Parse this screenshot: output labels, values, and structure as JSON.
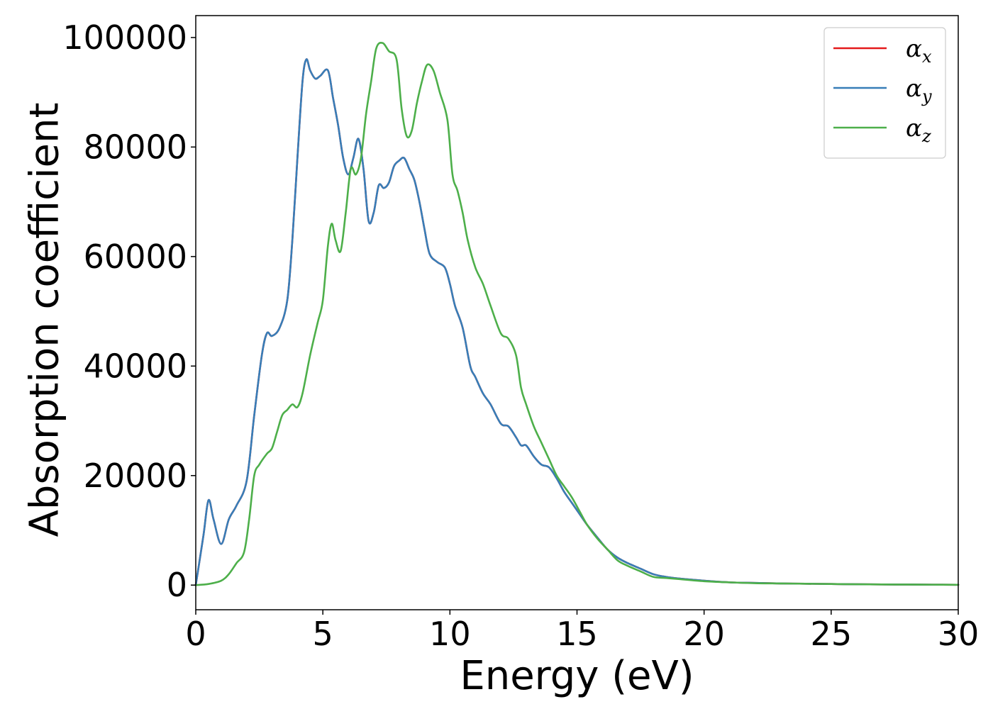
{
  "chart_data": {
    "type": "line",
    "title": "",
    "xlabel": "Energy (eV)",
    "ylabel": "Absorption coefficient",
    "xlim": [
      0,
      30
    ],
    "ylim": [
      -4500,
      104000
    ],
    "xticks": [
      0,
      5,
      10,
      15,
      20,
      25,
      30
    ],
    "yticks": [
      0,
      20000,
      40000,
      60000,
      80000,
      100000
    ],
    "grid": false,
    "legend_position": "top-right",
    "series": [
      {
        "name": "α_x",
        "legend_symbol": "α",
        "legend_subscript": "x",
        "color": "#e41a1c",
        "x": [
          0,
          0.3,
          0.5,
          0.7,
          1.0,
          1.3,
          1.6,
          2.0,
          2.3,
          2.6,
          2.8,
          3.0,
          3.3,
          3.6,
          3.8,
          4.0,
          4.2,
          4.35,
          4.5,
          4.7,
          4.9,
          5.2,
          5.4,
          5.6,
          5.8,
          6.0,
          6.2,
          6.4,
          6.6,
          6.8,
          7.0,
          7.2,
          7.4,
          7.6,
          7.8,
          8.0,
          8.2,
          8.4,
          8.6,
          8.8,
          9.0,
          9.2,
          9.5,
          9.8,
          10.0,
          10.2,
          10.5,
          10.8,
          11.0,
          11.3,
          11.6,
          12.0,
          12.3,
          12.6,
          12.8,
          13.0,
          13.3,
          13.6,
          13.9,
          14.2,
          14.5,
          14.8,
          15.1,
          15.4,
          15.8,
          16.2,
          16.6,
          17.0,
          17.5,
          18.0,
          18.5,
          19.0,
          20.0,
          21.0,
          22.0,
          23.0,
          24.0,
          25.0,
          26.0,
          27.0,
          28.0,
          29.0,
          30.0
        ],
        "values": [
          0,
          9000,
          15500,
          12000,
          7500,
          12000,
          14500,
          19000,
          31000,
          42000,
          46000,
          45500,
          47000,
          52000,
          63000,
          78000,
          92000,
          96000,
          94000,
          92500,
          93000,
          94000,
          89000,
          84000,
          78000,
          75000,
          78000,
          81500,
          76000,
          66500,
          68000,
          73000,
          72500,
          73500,
          76500,
          77500,
          78000,
          76000,
          74000,
          70000,
          65000,
          60500,
          59000,
          58000,
          55000,
          51000,
          47000,
          40000,
          38000,
          35000,
          33000,
          29500,
          29000,
          27000,
          25500,
          25500,
          23500,
          22000,
          21500,
          19500,
          17000,
          15000,
          13000,
          11000,
          8700,
          6500,
          5000,
          4000,
          3000,
          2000,
          1500,
          1200,
          800,
          500,
          400,
          300,
          250,
          200,
          150,
          120,
          100,
          80,
          60
        ]
      },
      {
        "name": "α_y",
        "legend_symbol": "α",
        "legend_subscript": "y",
        "color": "#377eb8",
        "x": [
          0,
          0.3,
          0.5,
          0.7,
          1.0,
          1.3,
          1.6,
          2.0,
          2.3,
          2.6,
          2.8,
          3.0,
          3.3,
          3.6,
          3.8,
          4.0,
          4.2,
          4.35,
          4.5,
          4.7,
          4.9,
          5.2,
          5.4,
          5.6,
          5.8,
          6.0,
          6.2,
          6.4,
          6.6,
          6.8,
          7.0,
          7.2,
          7.4,
          7.6,
          7.8,
          8.0,
          8.2,
          8.4,
          8.6,
          8.8,
          9.0,
          9.2,
          9.5,
          9.8,
          10.0,
          10.2,
          10.5,
          10.8,
          11.0,
          11.3,
          11.6,
          12.0,
          12.3,
          12.6,
          12.8,
          13.0,
          13.3,
          13.6,
          13.9,
          14.2,
          14.5,
          14.8,
          15.1,
          15.4,
          15.8,
          16.2,
          16.6,
          17.0,
          17.5,
          18.0,
          18.5,
          19.0,
          20.0,
          21.0,
          22.0,
          23.0,
          24.0,
          25.0,
          26.0,
          27.0,
          28.0,
          29.0,
          30.0
        ],
        "values": [
          0,
          9000,
          15500,
          12000,
          7500,
          12000,
          14500,
          19000,
          31000,
          42000,
          46000,
          45500,
          47000,
          52000,
          63000,
          78000,
          92000,
          96000,
          94000,
          92500,
          93000,
          94000,
          89000,
          84000,
          78000,
          75000,
          78000,
          81500,
          76000,
          66500,
          68000,
          73000,
          72500,
          73500,
          76500,
          77500,
          78000,
          76000,
          74000,
          70000,
          65000,
          60500,
          59000,
          58000,
          55000,
          51000,
          47000,
          40000,
          38000,
          35000,
          33000,
          29500,
          29000,
          27000,
          25500,
          25500,
          23500,
          22000,
          21500,
          19500,
          17000,
          15000,
          13000,
          11000,
          8700,
          6500,
          5000,
          4000,
          3000,
          2000,
          1500,
          1200,
          800,
          500,
          400,
          300,
          250,
          200,
          150,
          120,
          100,
          80,
          60
        ]
      },
      {
        "name": "α_z",
        "legend_symbol": "α",
        "legend_subscript": "z",
        "color": "#4daf4a",
        "x": [
          0,
          0.5,
          1.0,
          1.3,
          1.6,
          1.9,
          2.1,
          2.3,
          2.5,
          2.8,
          3.0,
          3.2,
          3.4,
          3.6,
          3.8,
          4.0,
          4.2,
          4.5,
          4.8,
          5.0,
          5.2,
          5.35,
          5.5,
          5.7,
          5.9,
          6.1,
          6.3,
          6.5,
          6.7,
          6.9,
          7.1,
          7.35,
          7.6,
          7.9,
          8.1,
          8.3,
          8.5,
          8.7,
          8.9,
          9.1,
          9.35,
          9.6,
          9.9,
          10.1,
          10.3,
          10.5,
          10.7,
          11.0,
          11.3,
          11.6,
          12.0,
          12.3,
          12.6,
          12.8,
          13.0,
          13.3,
          13.6,
          13.9,
          14.2,
          14.5,
          14.8,
          15.1,
          15.4,
          15.8,
          16.2,
          16.6,
          17.0,
          17.5,
          18.0,
          18.5,
          19.0,
          20.0,
          21.0,
          22.0,
          23.0,
          24.0,
          25.0,
          26.0,
          27.0,
          28.0,
          29.0,
          30.0
        ],
        "values": [
          0,
          200,
          800,
          2000,
          4000,
          6000,
          12000,
          20000,
          22000,
          24000,
          25000,
          28000,
          31000,
          32000,
          33000,
          32500,
          35000,
          42000,
          48000,
          52000,
          62000,
          66000,
          63000,
          61000,
          68000,
          76000,
          75000,
          78000,
          86000,
          92000,
          98000,
          99000,
          97500,
          96000,
          87000,
          82000,
          83000,
          88000,
          92000,
          95000,
          94000,
          90000,
          85000,
          75000,
          72000,
          68000,
          63000,
          58000,
          55000,
          51000,
          46000,
          45000,
          42000,
          36000,
          33000,
          29000,
          26000,
          23000,
          20000,
          18000,
          16000,
          13500,
          11000,
          8500,
          6500,
          4500,
          3500,
          2500,
          1500,
          1300,
          1100,
          700,
          500,
          350,
          300,
          250,
          200,
          150,
          120,
          100,
          80,
          60
        ]
      }
    ]
  }
}
